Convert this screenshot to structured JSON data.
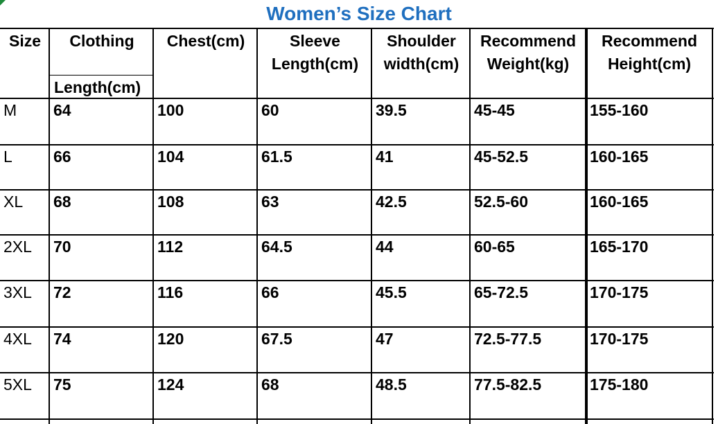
{
  "title": "Women’s Size Chart",
  "headers": {
    "size": "Size",
    "clothing_line1": "Clothing",
    "clothing_line2": "Length(cm)",
    "chest": "Chest(cm)",
    "sleeve_line1": "Sleeve",
    "sleeve_line2": "Length(cm)",
    "shoulder_line1": "Shoulder",
    "shoulder_line2": "width(cm)",
    "weight_line1": "Recommend",
    "weight_line2": "Weight(kg)",
    "height_line1": "Recommend",
    "height_line2": "Height(cm)"
  },
  "rows": [
    {
      "size": "M",
      "length": "64",
      "chest": "100",
      "sleeve": "60",
      "shoulder": "39.5",
      "weight": "45-45",
      "height": "155-160"
    },
    {
      "size": "L",
      "length": "66",
      "chest": "104",
      "sleeve": "61.5",
      "shoulder": "41",
      "weight": "45-52.5",
      "height": "160-165"
    },
    {
      "size": "XL",
      "length": "68",
      "chest": "108",
      "sleeve": "63",
      "shoulder": "42.5",
      "weight": "52.5-60",
      "height": "160-165"
    },
    {
      "size": "2XL",
      "length": "70",
      "chest": "112",
      "sleeve": "64.5",
      "shoulder": "44",
      "weight": "60-65",
      "height": "165-170"
    },
    {
      "size": "3XL",
      "length": "72",
      "chest": "116",
      "sleeve": "66",
      "shoulder": "45.5",
      "weight": "65-72.5",
      "height": "170-175"
    },
    {
      "size": "4XL",
      "length": "74",
      "chest": "120",
      "sleeve": "67.5",
      "shoulder": "47",
      "weight": "72.5-77.5",
      "height": "170-175"
    },
    {
      "size": "5XL",
      "length": "75",
      "chest": "124",
      "sleeve": "68",
      "shoulder": "48.5",
      "weight": "77.5-82.5",
      "height": "175-180"
    }
  ],
  "colors": {
    "title": "#1f6fbf",
    "corner": "#1e8a3a"
  }
}
